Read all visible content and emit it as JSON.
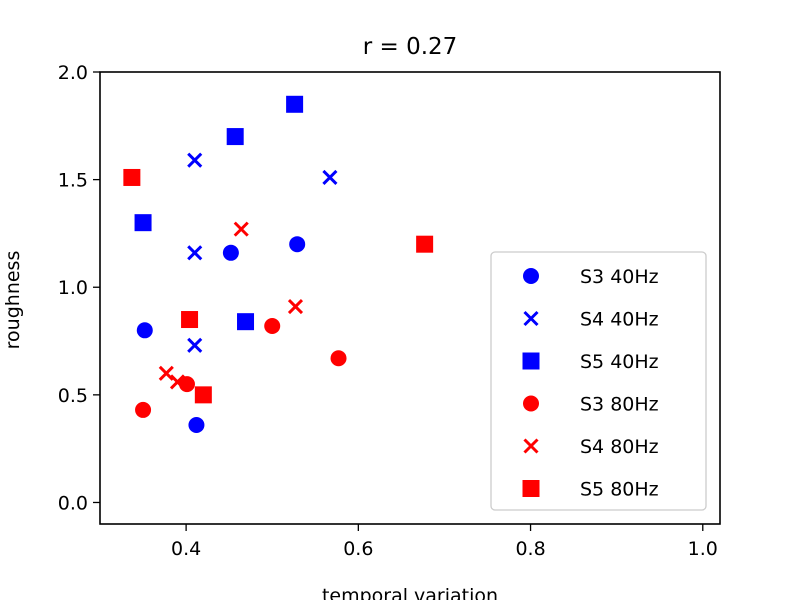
{
  "chart_data": {
    "type": "scatter",
    "title": "r = 0.27",
    "xlabel": "temporal variation",
    "ylabel": "roughness",
    "xlim": [
      0.3,
      1.02
    ],
    "ylim": [
      -0.1,
      2.0
    ],
    "xticks": [
      "0.4",
      "0.6",
      "0.8",
      "1.0"
    ],
    "yticks": [
      "0.0",
      "0.5",
      "1.0",
      "1.5",
      "2.0"
    ],
    "grid": false,
    "legend_position": "lower-right",
    "series": [
      {
        "name": "S3 40Hz",
        "marker": "circle",
        "color": "#0000ff",
        "points": [
          [
            0.352,
            0.8
          ],
          [
            0.452,
            1.16
          ],
          [
            0.529,
            1.2
          ],
          [
            0.412,
            0.36
          ]
        ]
      },
      {
        "name": "S4 40Hz",
        "marker": "x",
        "color": "#0000ff",
        "points": [
          [
            0.41,
            1.59
          ],
          [
            0.567,
            1.51
          ],
          [
            0.41,
            1.16
          ],
          [
            0.41,
            0.73
          ]
        ]
      },
      {
        "name": "S5 40Hz",
        "marker": "square",
        "color": "#0000ff",
        "points": [
          [
            0.526,
            1.85
          ],
          [
            0.457,
            1.7
          ],
          [
            0.35,
            1.3
          ],
          [
            0.469,
            0.84
          ]
        ]
      },
      {
        "name": "S3 80Hz",
        "marker": "circle",
        "color": "#ff0000",
        "points": [
          [
            0.35,
            0.43
          ],
          [
            0.401,
            0.55
          ],
          [
            0.5,
            0.82
          ],
          [
            0.577,
            0.67
          ]
        ]
      },
      {
        "name": "S4 80Hz",
        "marker": "x",
        "color": "#ff0000",
        "points": [
          [
            0.377,
            0.6
          ],
          [
            0.39,
            0.56
          ],
          [
            0.464,
            1.27
          ],
          [
            0.527,
            0.91
          ]
        ]
      },
      {
        "name": "S5 80Hz",
        "marker": "square",
        "color": "#ff0000",
        "points": [
          [
            0.337,
            1.51
          ],
          [
            0.404,
            0.85
          ],
          [
            0.42,
            0.5
          ],
          [
            0.677,
            1.2
          ]
        ]
      }
    ]
  }
}
